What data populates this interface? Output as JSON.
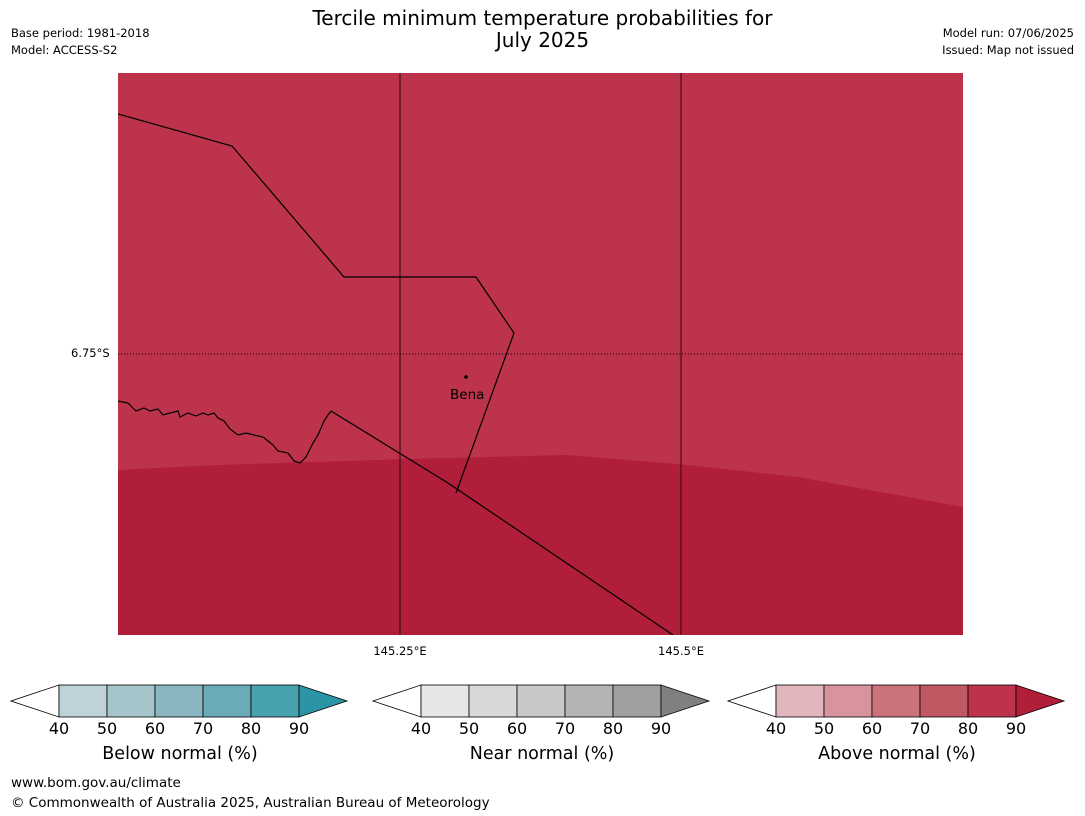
{
  "title_line1": "Tercile minimum temperature probabilities for",
  "title_line2": "July 2025",
  "meta_left": {
    "base_period": "Base period: 1981-2018",
    "model": "Model: ACCESS-S2"
  },
  "meta_right": {
    "model_run": "Model run: 07/06/2025",
    "issued": "Issued: Map not issued"
  },
  "map": {
    "lat_labels": [
      "6.75°S"
    ],
    "lon_labels": [
      "145.25°E",
      "145.5°E"
    ],
    "place": "Bena",
    "colors": {
      "above_70_80": "#bc334b",
      "above_80_90": "#b01e3a",
      "boundary": "#000000"
    }
  },
  "legends": [
    {
      "title": "Below normal (%)",
      "ticks": [
        "40",
        "50",
        "60",
        "70",
        "80",
        "90"
      ],
      "colors": [
        "#ffffff",
        "#bdd3d9",
        "#a5c5cb",
        "#89b6c1",
        "#6babb9",
        "#48a1af",
        "#2c95a5"
      ]
    },
    {
      "title": "Near normal (%)",
      "ticks": [
        "40",
        "50",
        "60",
        "70",
        "80",
        "90"
      ],
      "colors": [
        "#ffffff",
        "#e6e6e6",
        "#d8d8d8",
        "#c8c8c8",
        "#b4b4b4",
        "#a0a0a0",
        "#808080"
      ]
    },
    {
      "title": "Above normal (%)",
      "ticks": [
        "40",
        "50",
        "60",
        "70",
        "80",
        "90"
      ],
      "colors": [
        "#ffffff",
        "#e1b7bd",
        "#d7949d",
        "#ca737d",
        "#c15864",
        "#bc334b",
        "#b01e3a"
      ]
    }
  ],
  "footer": {
    "url": "www.bom.gov.au/climate",
    "copyright": "© Commonwealth of Australia 2025, Australian Bureau of Meteorology"
  }
}
